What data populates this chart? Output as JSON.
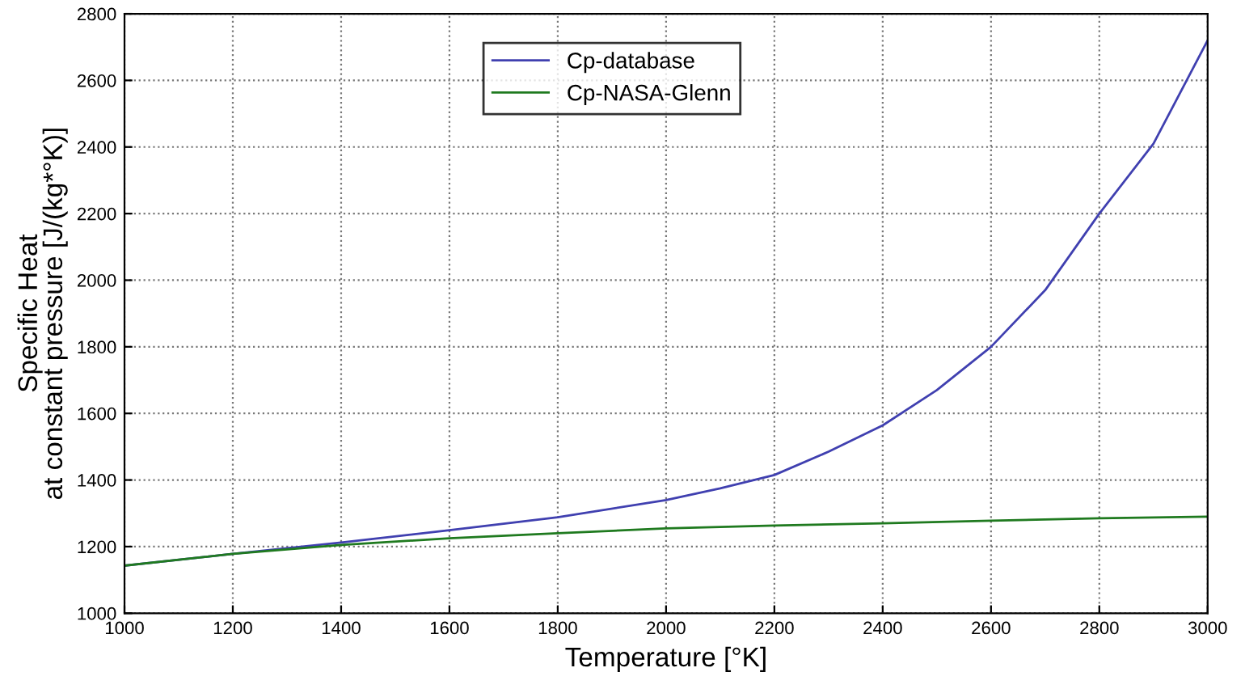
{
  "chart_data": {
    "type": "line",
    "xlabel": "Temperature [°K]",
    "ylabel": "Specific Heat\nat constant pressure [J/(kg*°K)]",
    "x": [
      1000,
      1200,
      1400,
      1600,
      1800,
      2000,
      2100,
      2200,
      2300,
      2400,
      2500,
      2600,
      2700,
      2800,
      2900,
      3000
    ],
    "series": [
      {
        "name": "Cp-database",
        "color": "#4040b0",
        "values": [
          1143,
          1178,
          1212,
          1249,
          1288,
          1340,
          1375,
          1415,
          1485,
          1564,
          1670,
          1800,
          1970,
          2200,
          2410,
          2720
        ]
      },
      {
        "name": "Cp-NASA-Glenn",
        "color": "#1f7a1f",
        "x": [
          1000,
          1200,
          1400,
          1600,
          1800,
          2000,
          2200,
          2400,
          2600,
          2800,
          3000
        ],
        "values": [
          1143,
          1178,
          1205,
          1225,
          1240,
          1255,
          1263,
          1270,
          1278,
          1285,
          1290
        ]
      }
    ],
    "xlim": [
      1000,
      3000
    ],
    "ylim": [
      1000,
      2800
    ],
    "xticks": [
      1000,
      1200,
      1400,
      1600,
      1800,
      2000,
      2200,
      2400,
      2600,
      2800,
      3000
    ],
    "yticks": [
      1000,
      1200,
      1400,
      1600,
      1800,
      2000,
      2200,
      2400,
      2600,
      2800
    ],
    "grid": true,
    "legend": "top",
    "line_style": "solid"
  }
}
